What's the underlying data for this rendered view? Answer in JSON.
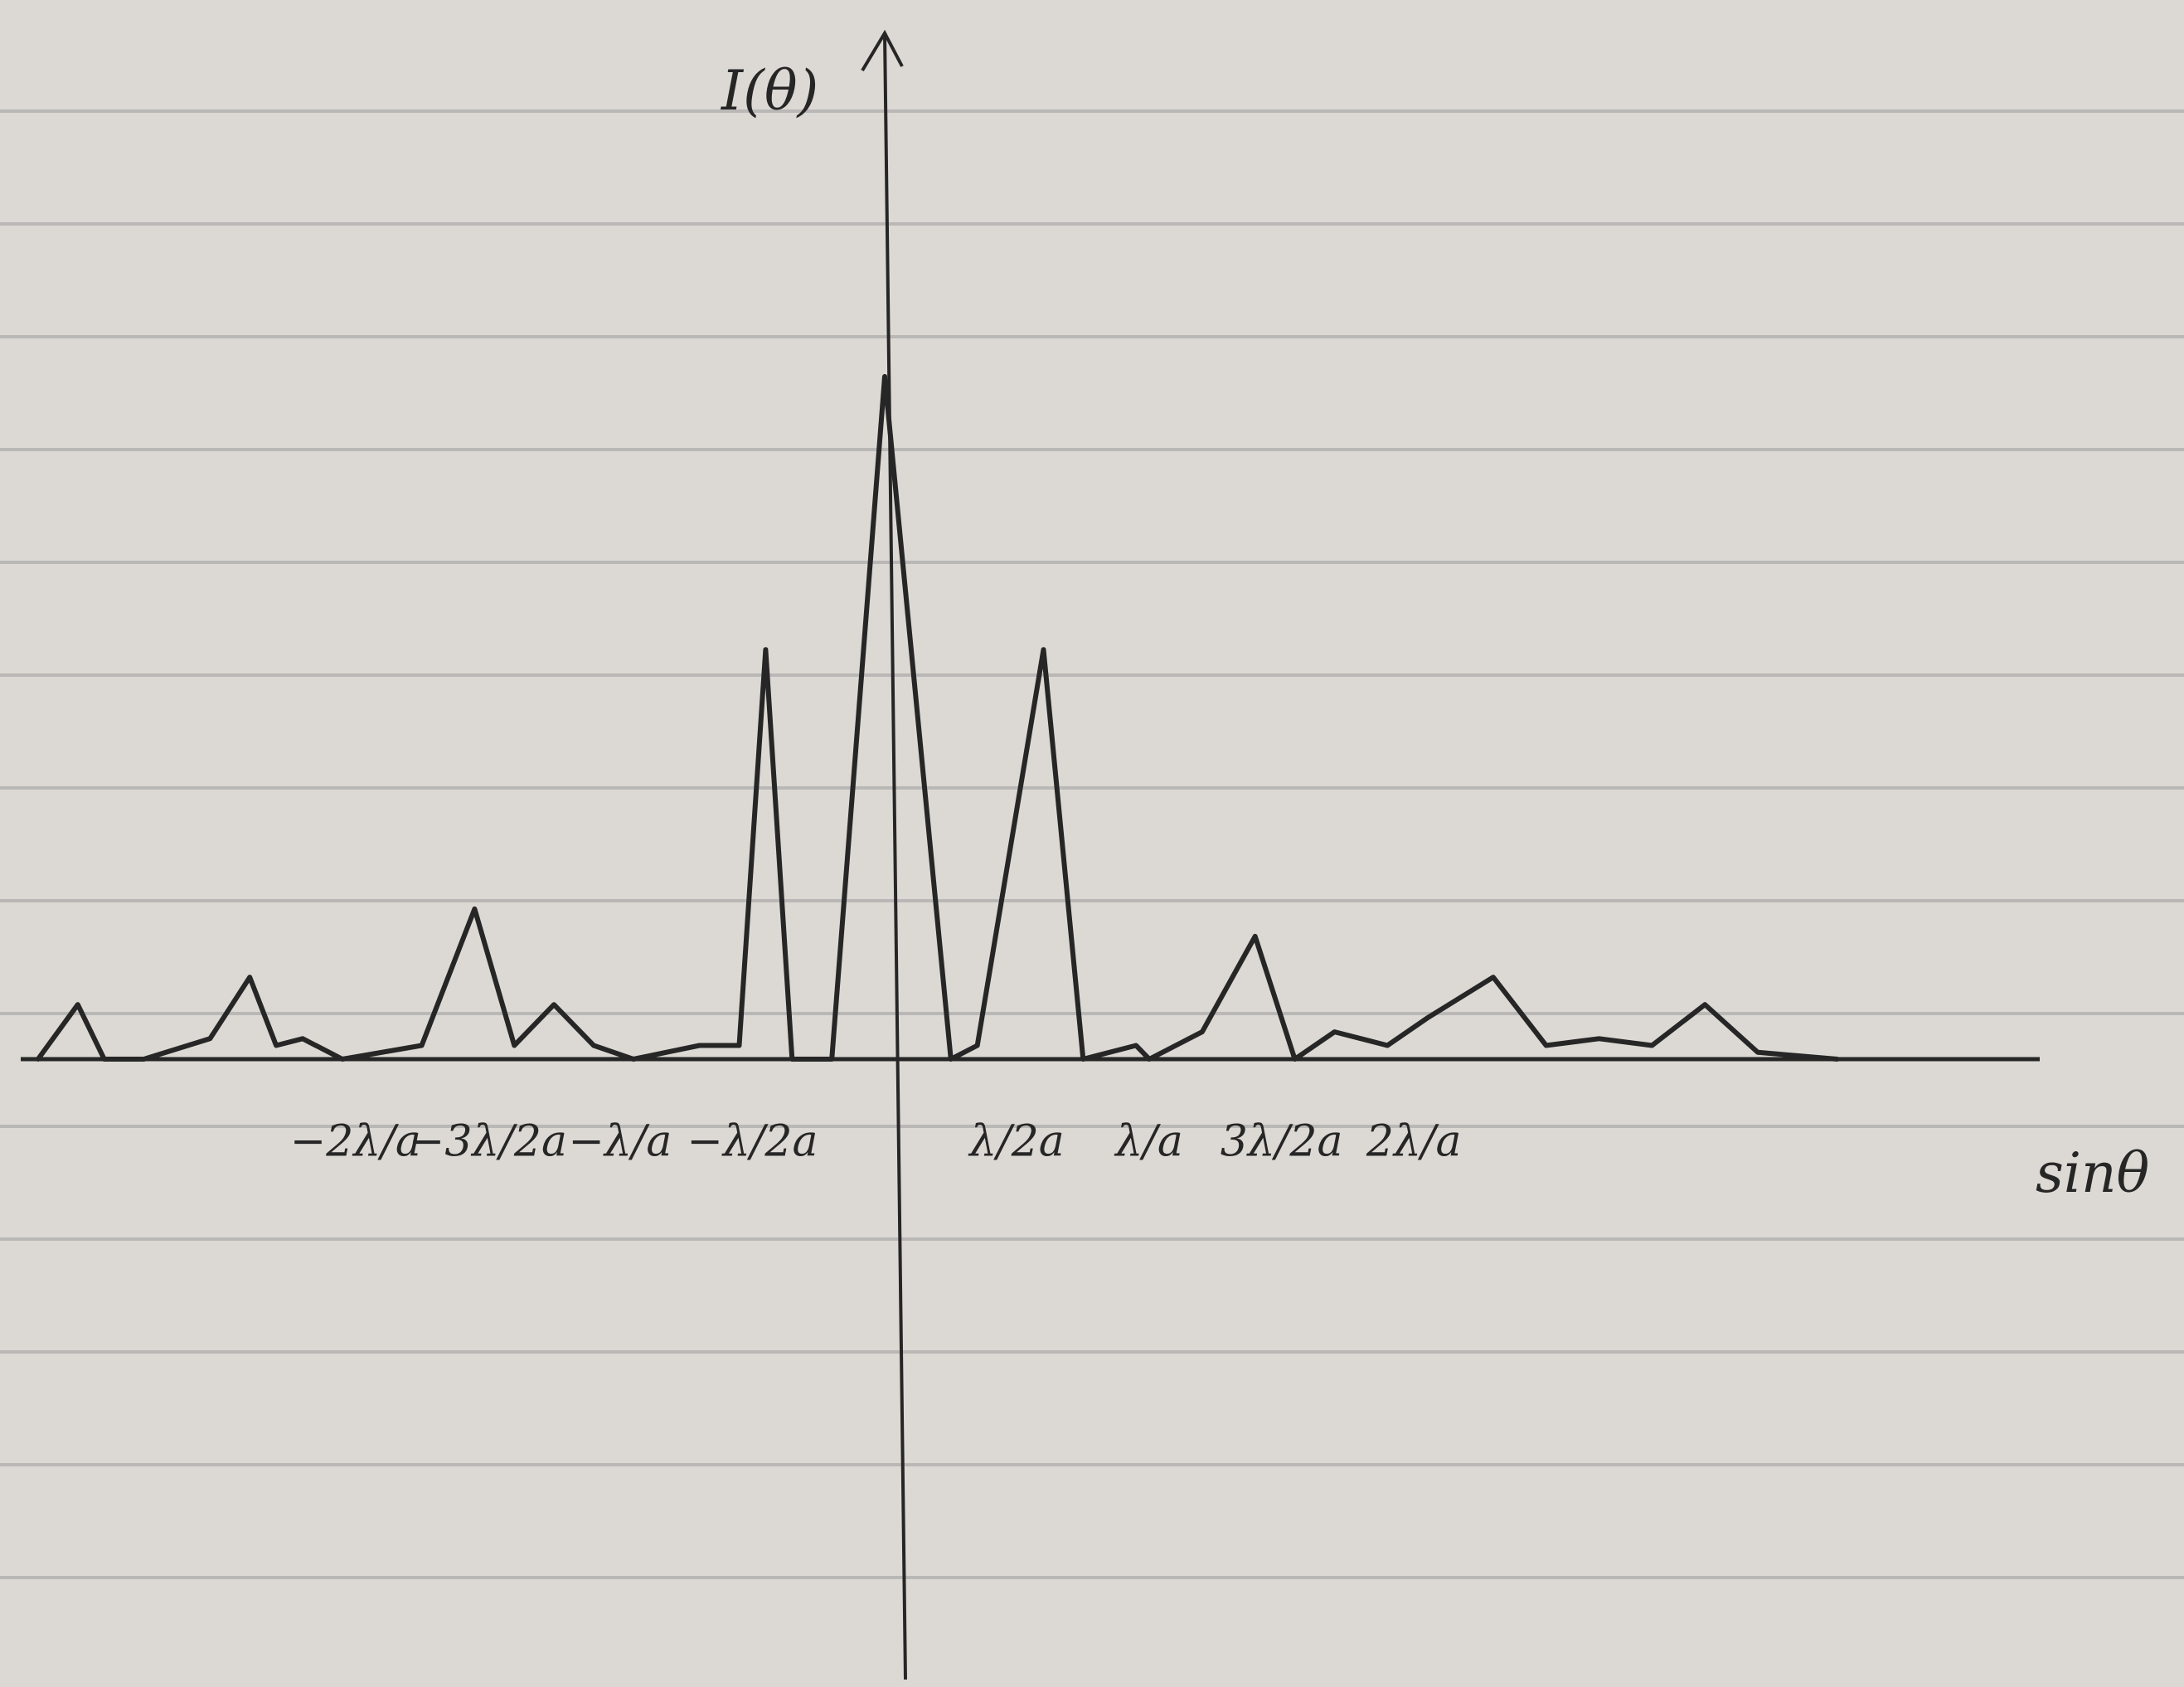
{
  "chart_data": {
    "type": "line",
    "y_label": "I(θ)",
    "x_label": "sinθ",
    "color": "#262626",
    "x": [
      -3.2,
      -3.05,
      -2.95,
      -2.8,
      -2.55,
      -2.4,
      -2.3,
      -2.2,
      -2.05,
      -1.75,
      -1.55,
      -1.4,
      -1.25,
      -1.1,
      -0.95,
      -0.7,
      -0.55,
      -0.45,
      -0.35,
      -0.2,
      0,
      0.25,
      0.35,
      0.6,
      0.75,
      0.95,
      1.0,
      1.2,
      1.4,
      1.55,
      1.7,
      1.9,
      2.05,
      2.3,
      2.5,
      2.7,
      2.9,
      3.1,
      3.3,
      3.6
    ],
    "values": [
      0,
      0.08,
      0,
      0,
      0.03,
      0.12,
      0.02,
      0.03,
      0,
      0.02,
      0.22,
      0.02,
      0.08,
      0.02,
      0,
      0.02,
      0.02,
      0.6,
      0,
      0,
      1,
      0,
      0.02,
      0.6,
      0,
      0.02,
      0,
      0.04,
      0.18,
      0,
      0.04,
      0.02,
      0.06,
      0.12,
      0.02,
      0.03,
      0.02,
      0.08,
      0.01,
      0
    ],
    "xlim": [
      -3.3,
      4.4
    ],
    "ylim": [
      0,
      1
    ],
    "xticks": [
      {
        "value": -2,
        "label": "−2λ/a"
      },
      {
        "value": -1.5,
        "label": "−3λ/2a"
      },
      {
        "value": -1,
        "label": "−λ/a"
      },
      {
        "value": -0.5,
        "label": "−λ/2a"
      },
      {
        "value": 0.5,
        "label": "λ/2a"
      },
      {
        "value": 1,
        "label": "λ/a"
      },
      {
        "value": 1.5,
        "label": "3λ/2a"
      },
      {
        "value": 2,
        "label": "2λ/a"
      }
    ]
  }
}
